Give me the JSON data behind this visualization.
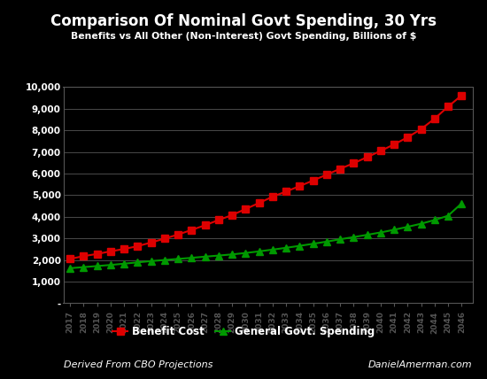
{
  "title": "Comparison Of Nominal Govt Spending, 30 Yrs",
  "subtitle": "Benefits vs All Other (Non-Interest) Govt Spending, Billions of $",
  "footer_left": "Derived From CBO Projections",
  "footer_right": "DanielAmerman.com",
  "legend_label_red": "Benefit Cost",
  "legend_label_green": "General Govt. Spending",
  "years": [
    2017,
    2018,
    2019,
    2020,
    2021,
    2022,
    2023,
    2024,
    2025,
    2026,
    2027,
    2028,
    2029,
    2030,
    2031,
    2032,
    2033,
    2034,
    2035,
    2036,
    2037,
    2038,
    2039,
    2040,
    2041,
    2042,
    2043,
    2044,
    2045,
    2046
  ],
  "benefit_cost": [
    2050,
    2180,
    2280,
    2400,
    2510,
    2640,
    2810,
    2990,
    3180,
    3390,
    3610,
    3850,
    4080,
    4360,
    4640,
    4930,
    5170,
    5420,
    5680,
    5950,
    6220,
    6480,
    6760,
    7050,
    7350,
    7680,
    8060,
    8540,
    9100,
    9620
  ],
  "general_spending": [
    1620,
    1670,
    1720,
    1770,
    1830,
    1890,
    1950,
    2000,
    2050,
    2100,
    2155,
    2205,
    2260,
    2325,
    2400,
    2480,
    2565,
    2655,
    2750,
    2850,
    2960,
    3060,
    3165,
    3275,
    3400,
    3535,
    3680,
    3850,
    4050,
    4620
  ],
  "bg_color": "#000000",
  "plot_bg_color": "#000000",
  "grid_color": "#555555",
  "text_color": "#ffffff",
  "red_color": "#dd0000",
  "green_color": "#009900",
  "ylim": [
    0,
    10000
  ],
  "yticks": [
    0,
    1000,
    2000,
    3000,
    4000,
    5000,
    6000,
    7000,
    8000,
    9000,
    10000
  ],
  "ytick_labels": [
    "-",
    "1,000",
    "2,000",
    "3,000",
    "4,000",
    "5,000",
    "6,000",
    "7,000",
    "8,000",
    "9,000",
    "10,000"
  ]
}
